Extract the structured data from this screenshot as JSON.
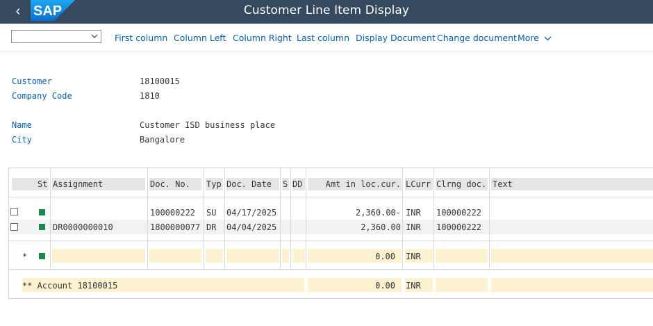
{
  "shell": {
    "title": "Customer Line Item Display",
    "logo_text": "SAP",
    "back_icon": "back-chevron-icon"
  },
  "toolbar": {
    "dropdown_value": "",
    "buttons": [
      "First column",
      "Column Left",
      "Column Right",
      "Last column",
      "Display Document",
      "Change document",
      "More"
    ]
  },
  "header_info": {
    "customer_label": "Customer",
    "customer_value": "18100015",
    "company_code_label": "Company Code",
    "company_code_value": "1810",
    "name_label": "Name",
    "name_value": "Customer ISD business place",
    "city_label": "City",
    "city_value": "Bangalore"
  },
  "grid": {
    "columns": [
      "St",
      "Assignment",
      "Doc. No.",
      "Typ",
      "Doc. Date",
      "S",
      "DD",
      "Amt in loc.cur.",
      "LCurr",
      "Clrng doc.",
      "Text"
    ],
    "rows": [
      {
        "assignment": "",
        "doc_no": "100000222",
        "typ": "SU",
        "doc_date": "04/17/2025",
        "s": "",
        "dd": "",
        "amount": "2,360.00-",
        "lcurr": "INR",
        "clrng_doc": "100000222",
        "text": ""
      },
      {
        "assignment": "DR0000000010",
        "doc_no": "1800000077",
        "typ": "DR",
        "doc_date": "04/04/2025",
        "s": "",
        "dd": "",
        "amount": "2,360.00",
        "lcurr": "INR",
        "clrng_doc": "100000222",
        "text": ""
      }
    ],
    "subtotal": {
      "marker": "*",
      "amount": "0.00",
      "lcurr": "INR"
    },
    "total": {
      "label": "** Account 18100015",
      "amount": "0.00",
      "lcurr": "INR"
    }
  },
  "colors": {
    "shell_bg": "#354a5f",
    "link_blue": "#0a5fa8",
    "status_green": "#1a8a4c",
    "total_row_yellow": "#fdf2d0"
  }
}
